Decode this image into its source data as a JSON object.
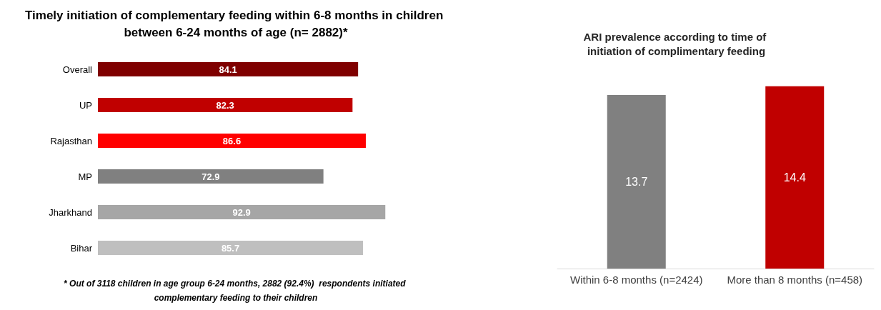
{
  "chart_data": [
    {
      "type": "bar",
      "orientation": "horizontal",
      "title": "Timely initiation of complementary feeding within 6-8 months in children between 6-24 months of age (n= 2882)*",
      "categories": [
        "Overall",
        "UP",
        "Rajasthan",
        "MP",
        "Jharkhand",
        "Bihar"
      ],
      "values": [
        84.1,
        82.3,
        86.6,
        72.9,
        92.9,
        85.7
      ],
      "colors": [
        "#7f0000",
        "#c00000",
        "#ff0000",
        "#808080",
        "#a6a6a6",
        "#bfbfbf"
      ],
      "data_labels": true,
      "annotations": [
        "* Out of 3118 children in age group 6-24 months, 2882 (92.4%)  respondents initiated complementary feeding to their children"
      ]
    },
    {
      "type": "bar",
      "title": "ARI prevalence according to time of initiation of complimentary feeding",
      "categories": [
        "Within 6-8 months (n=2424)",
        "More than 8 months (n=458)"
      ],
      "values": [
        13.7,
        14.4
      ],
      "colors": [
        "#808080",
        "#c00000"
      ],
      "data_labels": true
    }
  ]
}
